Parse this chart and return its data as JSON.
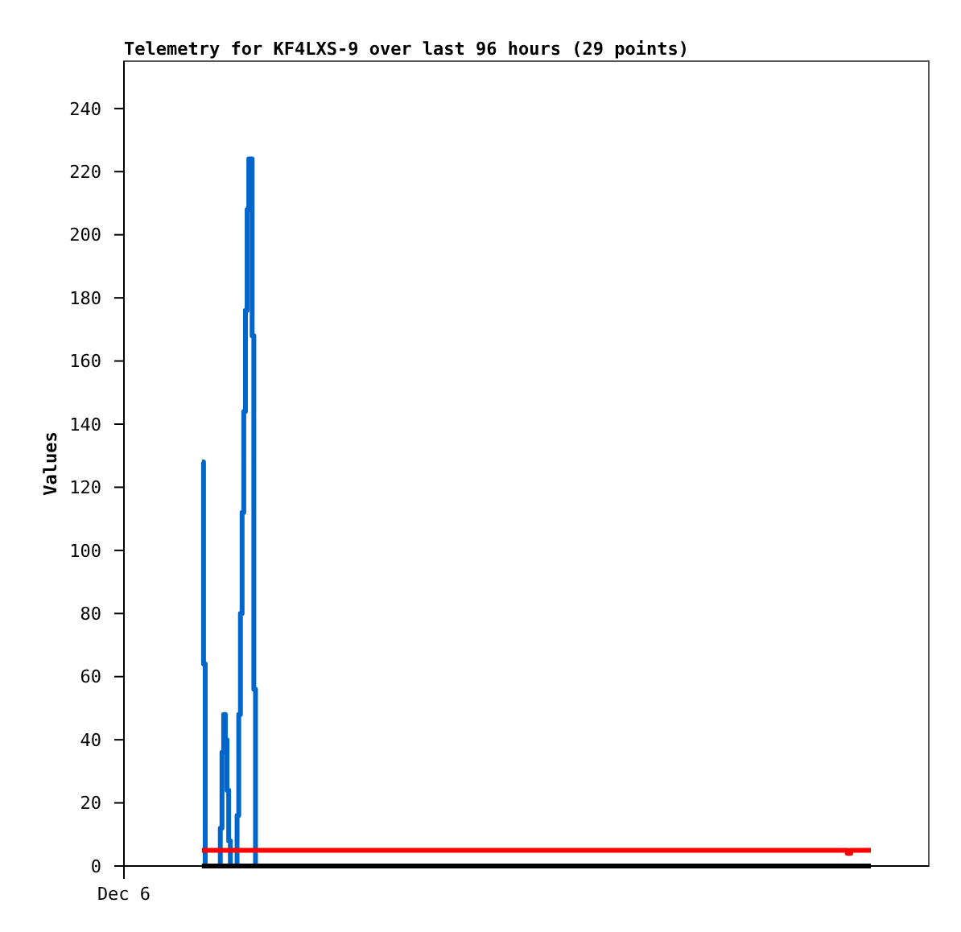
{
  "chart_data": {
    "type": "step",
    "title": "Telemetry for KF4LXS-9 over last 96 hours (29 points)",
    "ylabel": "Values",
    "annotations": [
      "Dec 6"
    ],
    "ylim": [
      0,
      255
    ],
    "yticks": [
      0,
      20,
      40,
      60,
      80,
      100,
      120,
      140,
      160,
      180,
      200,
      220,
      240
    ],
    "grid": false,
    "categories": [
      null,
      null,
      null,
      null,
      null,
      null,
      null,
      null,
      null,
      null,
      null,
      null,
      null,
      null,
      null,
      null,
      null,
      null,
      null,
      null,
      null,
      null,
      null,
      null,
      null,
      null,
      null,
      null,
      null,
      null,
      null,
      null,
      null,
      null,
      null,
      null,
      null,
      null,
      null,
      null,
      null,
      null,
      null,
      null,
      null,
      null,
      null,
      null,
      null,
      null,
      null,
      null,
      null,
      null,
      null,
      null,
      null,
      null,
      null,
      null,
      null,
      null,
      null,
      null,
      null,
      null,
      null,
      null,
      null,
      null,
      null,
      null,
      null,
      null,
      null,
      null,
      null,
      null,
      null,
      null,
      null,
      null,
      null,
      null,
      null,
      null,
      null,
      null,
      null,
      null,
      null,
      null,
      null,
      null,
      null,
      null,
      null,
      null,
      null,
      null,
      null,
      null,
      null,
      null,
      null,
      null,
      null,
      null,
      null,
      null,
      null,
      null,
      null,
      null,
      null,
      null,
      null,
      null,
      null,
      null,
      null,
      null,
      null,
      null,
      null,
      null,
      null,
      null,
      null,
      null,
      null,
      null,
      null,
      null,
      null,
      null,
      null,
      null,
      null,
      null,
      null,
      null,
      null,
      null,
      null,
      null,
      null,
      null,
      null,
      null,
      null,
      null,
      null,
      null,
      null,
      null,
      null,
      null,
      null,
      null,
      null,
      null,
      null,
      null,
      null,
      null,
      null,
      null,
      null,
      null,
      null,
      null,
      null,
      null,
      null,
      null,
      null,
      null,
      null,
      null,
      null,
      null,
      null,
      null,
      null,
      null,
      null,
      null,
      null,
      null,
      null,
      null,
      null,
      null,
      null,
      null,
      null,
      null,
      null,
      null,
      null,
      null,
      null,
      null,
      null,
      null,
      null,
      null,
      null,
      null,
      null,
      null,
      null,
      null,
      null,
      null,
      null,
      null,
      null,
      null,
      null,
      null,
      null,
      null,
      null,
      null,
      null,
      null,
      null,
      null,
      null,
      null,
      null,
      null,
      null,
      null,
      null,
      null,
      null,
      null,
      null,
      null,
      null,
      null,
      null,
      null,
      null,
      null,
      null,
      null,
      null,
      null,
      null,
      null,
      null,
      null,
      null,
      null,
      null,
      null,
      null,
      null,
      null,
      null,
      null,
      null,
      null,
      null,
      null,
      null,
      null,
      null,
      null,
      null,
      null,
      null,
      null,
      null,
      null,
      null,
      null,
      null,
      null,
      null,
      null,
      null,
      null,
      null,
      null,
      null,
      null,
      null,
      null,
      null,
      null,
      null,
      null,
      null,
      null,
      null,
      null,
      null,
      null,
      null,
      null,
      null,
      null,
      null,
      null,
      null,
      null,
      null,
      null,
      null,
      null,
      null,
      null,
      null,
      null,
      null,
      null,
      null,
      null,
      null,
      null,
      null,
      null,
      null,
      null,
      null,
      null,
      null,
      null,
      null,
      null,
      null,
      null,
      null,
      null,
      null,
      null,
      null,
      null,
      null,
      null,
      null,
      null,
      null,
      null,
      null,
      null,
      null,
      null,
      null,
      null,
      null,
      null,
      null,
      null,
      null,
      null,
      null,
      null,
      null,
      null,
      null,
      null,
      null,
      null,
      null,
      null,
      null,
      null,
      null,
      null,
      null,
      null,
      null,
      null,
      null,
      null,
      null,
      null,
      null,
      null,
      null,
      null,
      null,
      null,
      null,
      null,
      null,
      null,
      null,
      null,
      null,
      null,
      null,
      null,
      null
    ],
    "series": [
      {
        "color": "#0066cc",
        "values": [
          128,
          64,
          0,
          0,
          0,
          0,
          0,
          0,
          0,
          0,
          0,
          12,
          36,
          48,
          40,
          24,
          8,
          0,
          0,
          0,
          0,
          16,
          48,
          80,
          112,
          144,
          176,
          208,
          224,
          224,
          168,
          56,
          0,
          null,
          null,
          null,
          null,
          null,
          null,
          null,
          null,
          null,
          null,
          null,
          null,
          null,
          null,
          null,
          null,
          null,
          null,
          null,
          null,
          null,
          null,
          null,
          null,
          null,
          null,
          null,
          null,
          null,
          null,
          null,
          null,
          null,
          null,
          null,
          null,
          null,
          null,
          null,
          null,
          null,
          null,
          null,
          null,
          null,
          null,
          null,
          null,
          null,
          null,
          null,
          null,
          null,
          null,
          null,
          null,
          null,
          null,
          null,
          null,
          null,
          null,
          null,
          null,
          null,
          null,
          null,
          null,
          null,
          null,
          null,
          null,
          null,
          null,
          null,
          null,
          null,
          null,
          null,
          null,
          null,
          null,
          null,
          null,
          null,
          null,
          null,
          null,
          null,
          null,
          null,
          null,
          null,
          null,
          null,
          null,
          null,
          null,
          null,
          null,
          null,
          null,
          null,
          null,
          null,
          null,
          null,
          null,
          null,
          null,
          null,
          null,
          null,
          null,
          null,
          null,
          null,
          null,
          null,
          null,
          null,
          null,
          null,
          null,
          null,
          null,
          null,
          null,
          null,
          null,
          null,
          null,
          null,
          null,
          null,
          null,
          null,
          null,
          null,
          null,
          null,
          null,
          null,
          null,
          null,
          null,
          null,
          null,
          null,
          null,
          null,
          null,
          null,
          null,
          null,
          null,
          null,
          null,
          null,
          null,
          null,
          null,
          null,
          null,
          null,
          null,
          null,
          null,
          null,
          null,
          null,
          null,
          null,
          null,
          null,
          null,
          null,
          null,
          null,
          null,
          null,
          null,
          null,
          null,
          null,
          null,
          null,
          null,
          null,
          null,
          null,
          null,
          null,
          null,
          null,
          null,
          null,
          null,
          null,
          null,
          null,
          null,
          null,
          null,
          null,
          null,
          null,
          null,
          null,
          null,
          null,
          null,
          null,
          null,
          null,
          null,
          null,
          null,
          null,
          null,
          null,
          null,
          null,
          null,
          null,
          null,
          null,
          null,
          null,
          null,
          null,
          null,
          null,
          null,
          null,
          null,
          null,
          null,
          null,
          null,
          null,
          null,
          null,
          null,
          null,
          null,
          null,
          null,
          null,
          null,
          null,
          null,
          null,
          null,
          null,
          null,
          null,
          null,
          null,
          null,
          null,
          null,
          null,
          null,
          null,
          null,
          null,
          null,
          null,
          null,
          null,
          null,
          null,
          null,
          null,
          null,
          null,
          null,
          null,
          null,
          null,
          null,
          null,
          null,
          null,
          null,
          null,
          null,
          null,
          null,
          null,
          null,
          null,
          null,
          null,
          null,
          null,
          null,
          null,
          null,
          null,
          null,
          null,
          null,
          null,
          null,
          null,
          null,
          null,
          null,
          null,
          null,
          null,
          null,
          null,
          null,
          null,
          null,
          null,
          null,
          null,
          null,
          null,
          null,
          null,
          null,
          null,
          null,
          null,
          null,
          null,
          null,
          null,
          null,
          null,
          null,
          null,
          null,
          null,
          null,
          null,
          null,
          null,
          null,
          null,
          null,
          null,
          null,
          null,
          null,
          null,
          null,
          null,
          null,
          null,
          null,
          null,
          null,
          null,
          null,
          null,
          null,
          null,
          null,
          null,
          null,
          null
        ]
      },
      {
        "color": "#ff0000",
        "values": [
          5,
          5,
          5,
          5,
          5,
          5,
          5,
          5,
          5,
          5,
          5,
          5,
          5,
          5,
          5,
          5,
          5,
          5,
          5,
          5,
          5,
          5,
          5,
          5,
          5,
          5,
          5,
          5,
          5,
          5,
          5,
          5,
          5,
          5,
          5,
          5,
          5,
          5,
          5,
          5,
          5,
          5,
          5,
          5,
          5,
          5,
          5,
          5,
          5,
          5,
          5,
          5,
          5,
          5,
          5,
          5,
          5,
          5,
          5,
          5,
          5,
          5,
          5,
          5,
          5,
          5,
          5,
          5,
          5,
          5,
          5,
          5,
          5,
          5,
          5,
          5,
          5,
          5,
          5,
          5,
          5,
          5,
          5,
          5,
          5,
          5,
          5,
          5,
          5,
          5,
          5,
          5,
          5,
          5,
          5,
          5,
          5,
          5,
          5,
          5,
          5,
          5,
          5,
          5,
          5,
          5,
          5,
          5,
          5,
          5,
          5,
          5,
          5,
          5,
          5,
          5,
          5,
          5,
          5,
          5,
          5,
          5,
          5,
          5,
          5,
          5,
          5,
          5,
          5,
          5,
          5,
          5,
          5,
          5,
          5,
          5,
          5,
          5,
          5,
          5,
          5,
          5,
          5,
          5,
          5,
          5,
          5,
          5,
          5,
          5,
          5,
          5,
          5,
          5,
          5,
          5,
          5,
          5,
          5,
          5,
          5,
          5,
          5,
          5,
          5,
          5,
          5,
          5,
          5,
          5,
          5,
          5,
          5,
          5,
          5,
          5,
          5,
          5,
          5,
          5,
          5,
          5,
          5,
          5,
          5,
          5,
          5,
          5,
          5,
          5,
          5,
          5,
          5,
          5,
          5,
          5,
          5,
          5,
          5,
          5,
          5,
          5,
          5,
          5,
          5,
          5,
          5,
          5,
          5,
          5,
          5,
          5,
          5,
          5,
          5,
          5,
          5,
          5,
          5,
          5,
          5,
          5,
          5,
          5,
          5,
          5,
          5,
          5,
          5,
          5,
          5,
          5,
          5,
          5,
          5,
          5,
          5,
          5,
          5,
          5,
          5,
          5,
          5,
          5,
          5,
          5,
          5,
          5,
          5,
          5,
          5,
          5,
          5,
          5,
          5,
          5,
          5,
          5,
          5,
          5,
          5,
          5,
          5,
          5,
          5,
          5,
          5,
          5,
          5,
          5,
          5,
          5,
          5,
          5,
          5,
          5,
          5,
          5,
          5,
          5,
          5,
          5,
          5,
          5,
          5,
          5,
          5,
          5,
          5,
          5,
          5,
          5,
          5,
          5,
          5,
          5,
          5,
          5,
          5,
          5,
          5,
          5,
          5,
          5,
          5,
          5,
          5,
          5,
          5,
          5,
          5,
          5,
          5,
          5,
          5,
          5,
          5,
          5,
          5,
          5,
          5,
          5,
          5,
          5,
          5,
          5,
          5,
          5,
          5,
          5,
          5,
          5,
          5,
          5,
          5,
          5,
          5,
          5,
          5,
          5,
          5,
          5,
          5,
          5,
          5,
          5,
          5,
          5,
          5,
          5,
          5,
          5,
          5,
          5,
          5,
          5,
          5,
          5,
          5,
          5,
          5,
          5,
          5,
          5,
          5,
          5,
          5,
          5,
          5,
          5,
          5,
          5,
          5,
          5,
          5,
          5,
          5,
          5,
          5,
          5,
          5,
          5,
          5,
          5,
          5,
          4,
          4,
          5,
          5,
          5,
          5,
          5,
          5,
          5,
          5,
          5,
          5,
          5,
          5,
          5
        ]
      },
      {
        "color": "#000000",
        "values": [
          0,
          0,
          0,
          0,
          0,
          0,
          0,
          0,
          0,
          0,
          0,
          0,
          0,
          0,
          0,
          0,
          0,
          0,
          0,
          0,
          0,
          0,
          0,
          0,
          0,
          0,
          0,
          0,
          0,
          0,
          0,
          0,
          0,
          0,
          0,
          0,
          0,
          0,
          0,
          0,
          0,
          0,
          0,
          0,
          0,
          0,
          0,
          0,
          0,
          0,
          0,
          0,
          0,
          0,
          0,
          0,
          0,
          0,
          0,
          0,
          0,
          0,
          0,
          0,
          0,
          0,
          0,
          0,
          0,
          0,
          0,
          0,
          0,
          0,
          0,
          0,
          0,
          0,
          0,
          0,
          0,
          0,
          0,
          0,
          0,
          0,
          0,
          0,
          0,
          0,
          0,
          0,
          0,
          0,
          0,
          0,
          0,
          0,
          0,
          0,
          0,
          0,
          0,
          0,
          0,
          0,
          0,
          0,
          0,
          0,
          0,
          0,
          0,
          0,
          0,
          0,
          0,
          0,
          0,
          0,
          0,
          0,
          0,
          0,
          0,
          0,
          0,
          0,
          0,
          0,
          0,
          0,
          0,
          0,
          0,
          0,
          0,
          0,
          0,
          0,
          0,
          0,
          0,
          0,
          0,
          0,
          0,
          0,
          0,
          0,
          0,
          0,
          0,
          0,
          0,
          0,
          0,
          0,
          0,
          0,
          0,
          0,
          0,
          0,
          0,
          0,
          0,
          0,
          0,
          0,
          0,
          0,
          0,
          0,
          0,
          0,
          0,
          0,
          0,
          0,
          0,
          0,
          0,
          0,
          0,
          0,
          0,
          0,
          0,
          0,
          0,
          0,
          0,
          0,
          0,
          0,
          0,
          0,
          0,
          0,
          0,
          0,
          0,
          0,
          0,
          0,
          0,
          0,
          0,
          0,
          0,
          0,
          0,
          0,
          0,
          0,
          0,
          0,
          0,
          0,
          0,
          0,
          0,
          0,
          0,
          0,
          0,
          0,
          0,
          0,
          0,
          0,
          0,
          0,
          0,
          0,
          0,
          0,
          0,
          0,
          0,
          0,
          0,
          0,
          0,
          0,
          0,
          0,
          0,
          0,
          0,
          0,
          0,
          0,
          0,
          0,
          0,
          0,
          0,
          0,
          0,
          0,
          0,
          0,
          0,
          0,
          0,
          0,
          0,
          0,
          0,
          0,
          0,
          0,
          0,
          0,
          0,
          0,
          0,
          0,
          0,
          0,
          0,
          0,
          0,
          0,
          0,
          0,
          0,
          0,
          0,
          0,
          0,
          0,
          0,
          0,
          0,
          0,
          0,
          0,
          0,
          0,
          0,
          0,
          0,
          0,
          0,
          0,
          0,
          0,
          0,
          0,
          0,
          0,
          0,
          0,
          0,
          0,
          0,
          0,
          0,
          0,
          0,
          0,
          0,
          0,
          0,
          0,
          0,
          0,
          0,
          0,
          0,
          0,
          0,
          0,
          0,
          0,
          0,
          0,
          0,
          0,
          0,
          0,
          0,
          0,
          0,
          0,
          0,
          0,
          0,
          0,
          0,
          0,
          0,
          0,
          0,
          0,
          0,
          0,
          0,
          0,
          0,
          0,
          0,
          0,
          0,
          0,
          0,
          0,
          0,
          0,
          0,
          0,
          0,
          0,
          0,
          0,
          0,
          0,
          0,
          0,
          0,
          0,
          0,
          0,
          0,
          0,
          0,
          0,
          0,
          0,
          0,
          0,
          0,
          0,
          0,
          0,
          0,
          0
        ]
      }
    ]
  }
}
